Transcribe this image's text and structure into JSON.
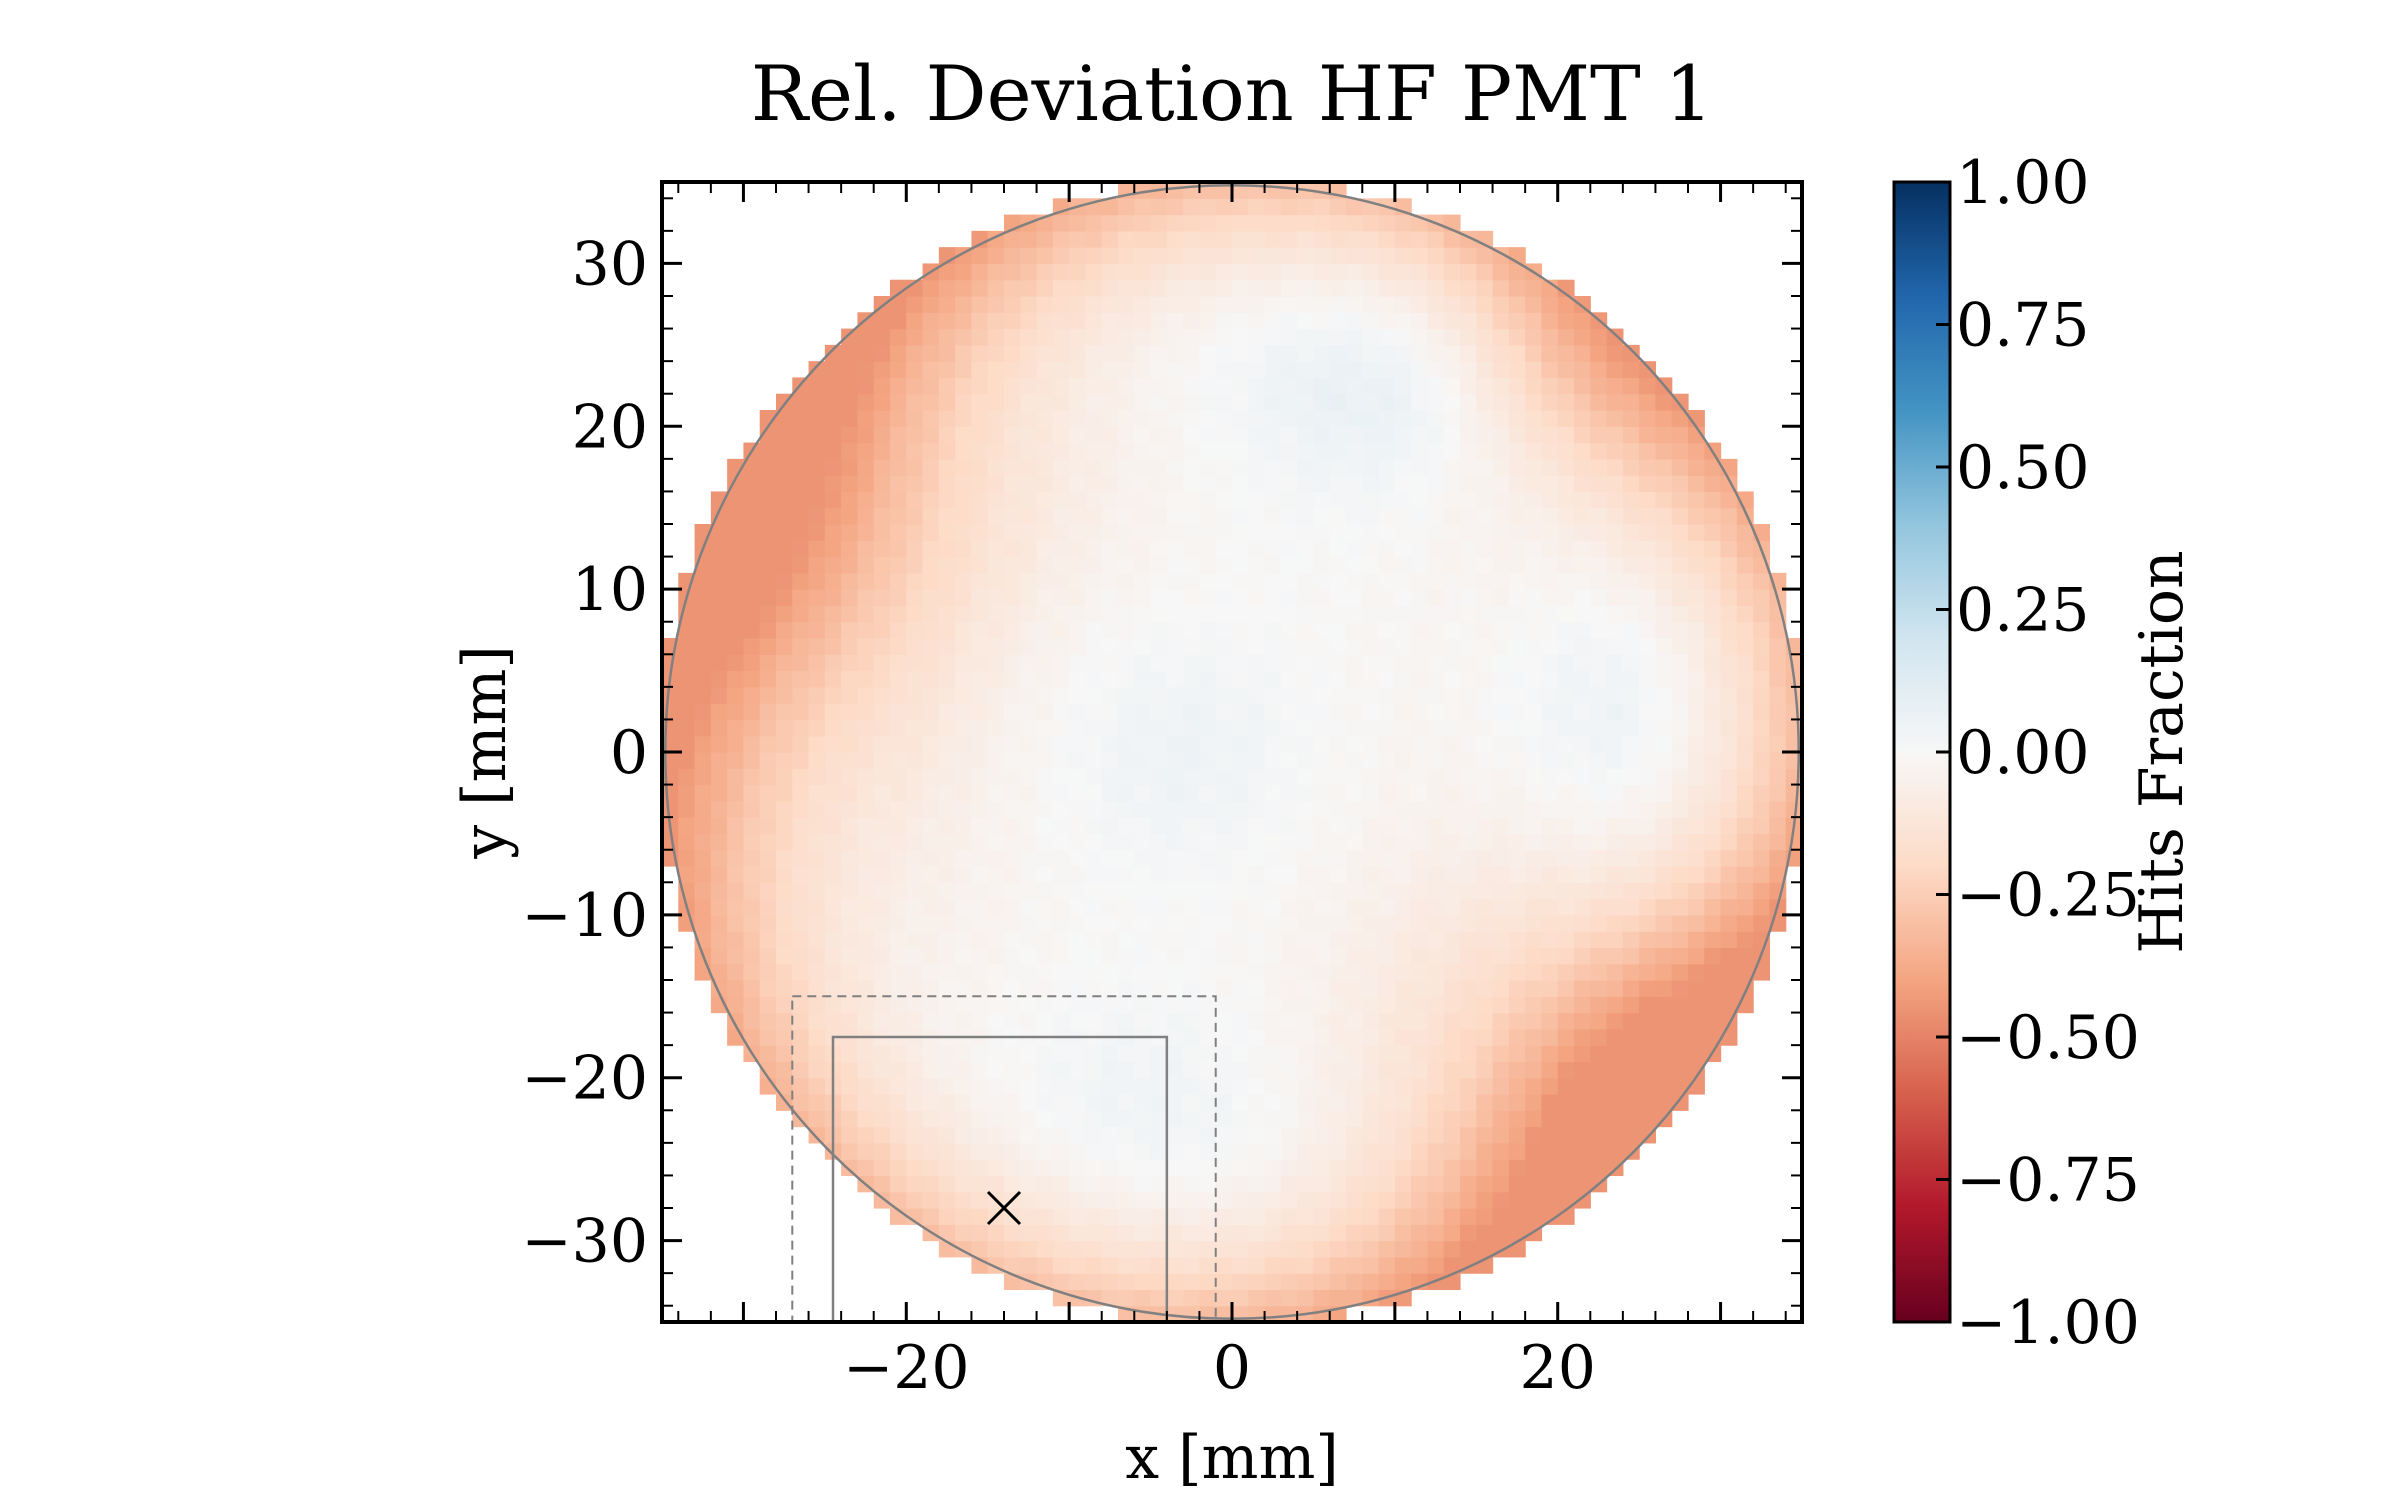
{
  "chart_data": {
    "type": "heatmap",
    "title": "Rel. Deviation HF PMT 1",
    "xlabel": "x [mm]",
    "ylabel": "y [mm]",
    "xlim": [
      -35,
      35
    ],
    "ylim": [
      -35,
      35
    ],
    "x_ticks": [
      -20,
      0,
      20
    ],
    "y_ticks": [
      30,
      20,
      10,
      0,
      -10,
      -20,
      -30
    ],
    "x_tick_labels": [
      "−20",
      "0",
      "20"
    ],
    "y_tick_labels": [
      "30",
      "20",
      "10",
      "0",
      "−10",
      "−20",
      "−30"
    ],
    "grid": false,
    "colorbar": {
      "label": "Hits Fraction",
      "range": [
        -1.0,
        1.0
      ],
      "ticks": [
        1.0,
        0.75,
        0.5,
        0.25,
        0.0,
        -0.25,
        -0.5,
        -0.75,
        -1.0
      ],
      "tick_labels": [
        "1.00",
        "0.75",
        "0.50",
        "0.25",
        "0.00",
        "−0.25",
        "−0.50",
        "−0.75",
        "−1.00"
      ],
      "colormap": "RdBu",
      "colors": [
        "#67001f",
        "#b2182b",
        "#d6604d",
        "#f4a582",
        "#fddbc7",
        "#f7f7f7",
        "#d1e5f0",
        "#92c5de",
        "#4393c3",
        "#2166ac",
        "#053061"
      ]
    },
    "heatmap": {
      "bin_size_mm": 1,
      "active_region": {
        "shape": "circle",
        "center": [
          0,
          0
        ],
        "radius": 35
      },
      "values_range_observed": [
        -0.45,
        0.08
      ],
      "features": [
        {
          "region": "upper interior",
          "center": [
            8,
            23
          ],
          "value": 0.08
        },
        {
          "region": "central interior",
          "center": [
            -3,
            0
          ],
          "value": 0.05
        },
        {
          "region": "right interior",
          "center": [
            24,
            3
          ],
          "value": 0.05
        },
        {
          "region": "lower interior",
          "center": [
            -5,
            -22
          ],
          "value": 0.04
        },
        {
          "region": "left rim",
          "center": [
            -30,
            15
          ],
          "value": -0.4
        },
        {
          "region": "lower-right rim",
          "center": [
            26,
            -22
          ],
          "value": -0.45
        },
        {
          "region": "upper-right rim",
          "center": [
            24,
            24
          ],
          "value": -0.2
        }
      ]
    },
    "overlays": [
      {
        "type": "circle",
        "center": [
          0,
          0
        ],
        "radius": 34.8,
        "color": "#808080"
      },
      {
        "type": "rectangle",
        "style": "dashed",
        "x": [
          -27,
          -1
        ],
        "y": [
          -35,
          -15
        ],
        "color": "#808080"
      },
      {
        "type": "rectangle",
        "style": "solid",
        "x": [
          -24.5,
          -4
        ],
        "y": [
          -35,
          -17.5
        ],
        "color": "#808080"
      },
      {
        "type": "marker",
        "symbol": "x",
        "at": [
          -14,
          -28
        ],
        "color": "#000000"
      }
    ]
  }
}
